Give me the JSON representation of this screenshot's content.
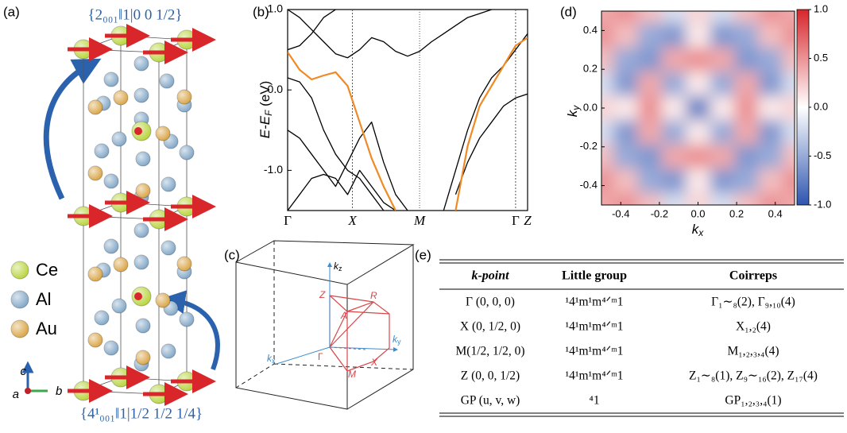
{
  "panel_labels": [
    "(a)",
    "(b)",
    "(c)",
    "(d)",
    "(e)"
  ],
  "structure": {
    "top_operation": "{2₀₀₁‖1|0 0 1/2}",
    "bottom_operation": "{4¹₀₀₁‖1|1/2 1/2 1/4}",
    "legend": [
      {
        "label": "Ce",
        "color": "#b7d43a"
      },
      {
        "label": "Al",
        "color": "#7fa5c6"
      },
      {
        "label": "Au",
        "color": "#d9a343"
      }
    ],
    "axes": [
      "c",
      "a",
      "b"
    ]
  },
  "chart_data": [
    {
      "type": "line",
      "ylabel": {
        "base": "E-E",
        "sub": "F",
        "unit": " (eV)"
      },
      "x": [
        0,
        0.05,
        0.1,
        0.15,
        0.2,
        0.25,
        0.3,
        0.35,
        0.4,
        0.45,
        0.5,
        0.55,
        0.6,
        0.65,
        0.7,
        0.75,
        0.8,
        0.85,
        0.9,
        0.95,
        1.0
      ],
      "xlim": [
        0,
        1.0
      ],
      "ylim": [
        -1.5,
        1.0
      ],
      "xticks": [
        {
          "value": 0,
          "label": "Γ"
        },
        {
          "value": 0.27,
          "label": "X"
        },
        {
          "value": 0.55,
          "label": "M"
        },
        {
          "value": 0.95,
          "label": "Γ"
        },
        {
          "value": 1.0,
          "label": "Z"
        }
      ],
      "yticks": [
        {
          "value": 1.0,
          "label": "1.0"
        },
        {
          "value": 0.0,
          "label": "0.0"
        },
        {
          "value": -1.0,
          "label": "-1.0"
        }
      ],
      "series": [
        {
          "color": "#000000",
          "values": [
            1.0,
            0.9,
            0.75,
            0.6,
            0.45,
            0.4,
            0.5,
            0.65,
            0.6,
            0.48,
            0.42,
            0.48,
            0.6,
            0.7,
            0.8,
            0.9,
            0.95,
            1.0,
            null,
            null,
            null
          ]
        },
        {
          "color": "#000000",
          "values": [
            0.5,
            0.55,
            0.7,
            0.9,
            1.0,
            null,
            null,
            null,
            null,
            null,
            null,
            null,
            null,
            null,
            null,
            null,
            null,
            null,
            null,
            null,
            null
          ]
        },
        {
          "color": "#000000",
          "values": [
            -0.5,
            -0.6,
            -0.8,
            -1.0,
            -1.2,
            -0.9,
            -0.6,
            -0.4,
            -0.9,
            -1.3,
            -1.5,
            null,
            null,
            null,
            null,
            null,
            null,
            null,
            null,
            null,
            null
          ]
        },
        {
          "color": "#000000",
          "values": [
            -1.5,
            -1.3,
            -1.1,
            -1.05,
            -1.1,
            -1.3,
            -1.0,
            -1.2,
            -1.4,
            -1.5,
            null,
            null,
            null,
            null,
            -1.3,
            -0.9,
            -0.6,
            -0.4,
            -0.2,
            -0.1,
            -0.05
          ]
        },
        {
          "color": "#000000",
          "values": [
            null,
            null,
            null,
            null,
            null,
            null,
            null,
            null,
            null,
            null,
            null,
            null,
            null,
            -1.5,
            -1.0,
            -0.5,
            -0.1,
            0.15,
            0.3,
            0.5,
            0.7
          ]
        },
        {
          "color": "#000000",
          "values": [
            0.15,
            0.1,
            -0.1,
            -0.5,
            -0.8,
            -1.0,
            -1.1,
            -1.3,
            -1.5,
            null,
            null,
            null,
            null,
            null,
            null,
            null,
            null,
            null,
            null,
            null,
            null
          ]
        },
        {
          "color": "#f08a24",
          "values": [
            0.47,
            0.25,
            0.13,
            0.18,
            0.22,
            0.05,
            -0.4,
            -0.85,
            -1.2,
            -1.5,
            null,
            null,
            null,
            null,
            -1.5,
            -0.7,
            -0.2,
            0.05,
            0.3,
            0.55,
            0.65
          ]
        }
      ]
    },
    {
      "type": "heatmap",
      "xlabel": {
        "base": "k",
        "sub": "x"
      },
      "ylabel": {
        "base": "k",
        "sub": "y"
      },
      "x": [
        -0.5,
        -0.375,
        -0.25,
        -0.125,
        0,
        0.125,
        0.25,
        0.375,
        0.5
      ],
      "y": [
        0.5,
        0.375,
        0.25,
        0.125,
        0,
        -0.125,
        -0.25,
        -0.375,
        -0.5
      ],
      "z": [
        [
          0.4,
          0.5,
          0.3,
          -0.2,
          0.2,
          -0.2,
          0.3,
          0.5,
          0.4
        ],
        [
          0.5,
          0.3,
          -0.5,
          -0.6,
          0.1,
          -0.6,
          -0.5,
          0.3,
          0.5
        ],
        [
          0.3,
          -0.5,
          -0.6,
          0.4,
          0.5,
          0.4,
          -0.6,
          -0.5,
          0.3
        ],
        [
          -0.2,
          -0.6,
          0.4,
          -0.5,
          0.1,
          -0.5,
          0.4,
          -0.6,
          -0.2
        ],
        [
          0.2,
          0.1,
          0.5,
          0.1,
          -0.7,
          0.1,
          0.5,
          0.1,
          0.2
        ],
        [
          -0.2,
          -0.6,
          0.4,
          -0.5,
          0.1,
          -0.5,
          0.4,
          -0.6,
          -0.2
        ],
        [
          0.3,
          -0.5,
          -0.6,
          0.4,
          0.5,
          0.4,
          -0.6,
          -0.5,
          0.3
        ],
        [
          0.5,
          0.3,
          -0.5,
          -0.6,
          0.1,
          -0.6,
          -0.5,
          0.3,
          0.5
        ],
        [
          0.4,
          0.5,
          0.3,
          -0.2,
          0.2,
          -0.2,
          0.3,
          0.5,
          0.4
        ]
      ],
      "xlim": [
        -0.5,
        0.5
      ],
      "ylim": [
        -0.5,
        0.5
      ],
      "xticks": [
        -0.4,
        -0.2,
        {
          "value": 0,
          "label": "0.0"
        },
        0.2,
        0.4
      ],
      "yticks": [
        0.4,
        0.2,
        {
          "value": 0,
          "label": "0.0"
        },
        -0.2,
        -0.4
      ],
      "clim": [
        -1.0,
        1.0
      ],
      "cticks": [
        {
          "value": 1.0,
          "label": "1.0"
        },
        0.5,
        {
          "value": 0,
          "label": "0.0"
        },
        -0.5,
        {
          "value": -1.0,
          "label": "-1.0"
        }
      ],
      "colormap": [
        "#2f55b0",
        "#ffffff",
        "#d7262b"
      ]
    }
  ],
  "brillouin_zone": {
    "axes": [
      {
        "base": "k",
        "sub": "z"
      },
      {
        "base": "k",
        "sub": "y"
      },
      {
        "base": "k",
        "sub": "x"
      }
    ],
    "points": [
      "Z",
      "R",
      "A",
      "Γ",
      "X",
      "M"
    ]
  },
  "table": {
    "header": [
      "k-point",
      "Little group",
      "Coirreps"
    ],
    "rows": [
      [
        "Γ (0, 0, 0)",
        "¹4¹m¹m⁴ᐟᵐ1",
        "Γ₁∼₈(2), Γ₉,₁₀(4)"
      ],
      [
        "X (0, 1/2, 0)",
        "¹4¹m¹m⁴ᐟᵐ1",
        "X₁,₂(4)"
      ],
      [
        "M(1/2, 1/2, 0)",
        "¹4¹m¹m⁴ᐟᵐ1",
        "M₁,₂,₃,₄(4)"
      ],
      [
        "Z (0, 0, 1/2)",
        "¹4¹m¹m⁴ᐟᵐ1",
        "Z₁∼₈(1), Z₉∼₁₆(2), Z₁₇(4)"
      ],
      [
        "GP (u, v, w)",
        "⁴1",
        "GP₁,₂,₃,₄(1)"
      ]
    ]
  }
}
